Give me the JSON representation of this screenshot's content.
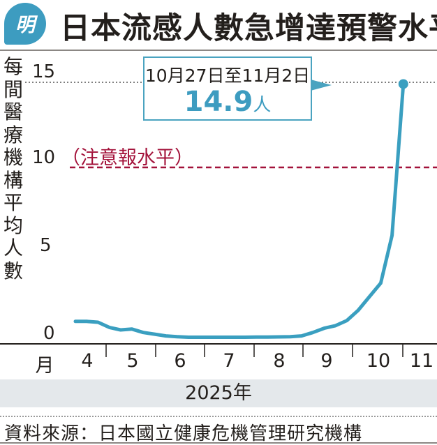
{
  "header": {
    "logo_text": "明",
    "title": "日本流感人數急增達預警水平"
  },
  "source": "資料來源：日本國立健康危機管理研究機構",
  "colors": {
    "line": "#3a9fc0",
    "warning": "#a3123a",
    "box_border": "#4aa3c0"
  },
  "chart_data": {
    "type": "line",
    "title": "日本流感人數急增達預警水平",
    "ylabel": "每間醫療機構平均人數",
    "xlabel": "2025年",
    "x_unit_label": "月",
    "ylim": [
      0,
      15
    ],
    "yticks": [
      "0",
      "5",
      "10",
      "15"
    ],
    "x_month_labels": [
      "4",
      "5",
      "6",
      "7",
      "8",
      "9",
      "10",
      "11"
    ],
    "warning_level": {
      "value": 10,
      "label": "（注意報水平）"
    },
    "series": [
      {
        "name": "每間醫療機構平均人數",
        "values": [
          0.95,
          0.95,
          0.9,
          0.6,
          0.45,
          0.5,
          0.3,
          0.2,
          0.1,
          0.05,
          0.02,
          0.02,
          0.02,
          0.02,
          0.02,
          0.02,
          0.03,
          0.03,
          0.04,
          0.05,
          0.1,
          0.3,
          0.55,
          0.7,
          1.0,
          1.6,
          2.4,
          3.2,
          6.0,
          14.9
        ]
      }
    ],
    "annotation": {
      "date_range": "10月27日至11月2日",
      "value": "14.9",
      "unit": "人"
    }
  }
}
